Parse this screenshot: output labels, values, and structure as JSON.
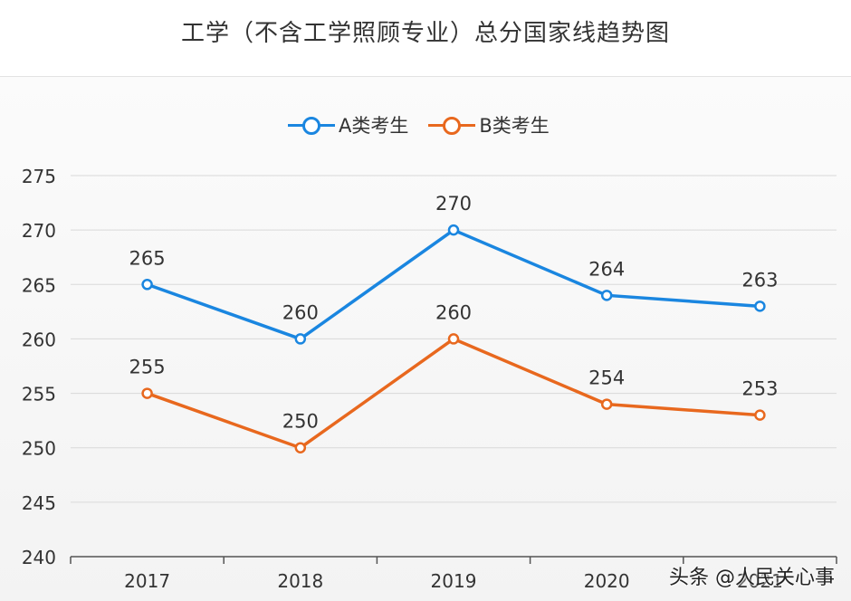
{
  "chart_data": {
    "type": "line",
    "title": "工学（不含工学照顾专业）总分国家线趋势图",
    "categories": [
      "2017",
      "2018",
      "2019",
      "2020",
      "2021"
    ],
    "series": [
      {
        "name": "A类考生",
        "values": [
          265,
          260,
          270,
          264,
          263
        ],
        "color": "#1a86e0"
      },
      {
        "name": "B类考生",
        "values": [
          255,
          250,
          260,
          254,
          253
        ],
        "color": "#e8681e"
      }
    ],
    "xlabel": "",
    "ylabel": "",
    "ylim": [
      240,
      275
    ],
    "yticks": [
      240,
      245,
      250,
      255,
      260,
      265,
      270,
      275
    ],
    "grid": true,
    "legend_position": "top-center",
    "data_labels": true
  },
  "watermark": "头条 @人民关心事"
}
